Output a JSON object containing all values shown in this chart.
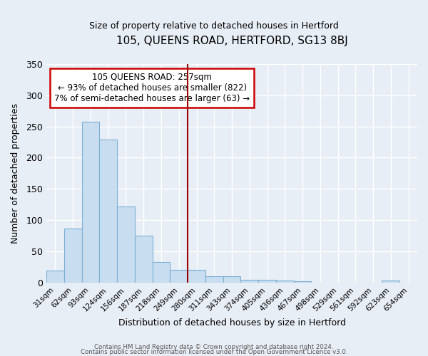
{
  "title": "105, QUEENS ROAD, HERTFORD, SG13 8BJ",
  "subtitle": "Size of property relative to detached houses in Hertford",
  "xlabel": "Distribution of detached houses by size in Hertford",
  "ylabel": "Number of detached properties",
  "bar_labels": [
    "31sqm",
    "62sqm",
    "93sqm",
    "124sqm",
    "156sqm",
    "187sqm",
    "218sqm",
    "249sqm",
    "280sqm",
    "311sqm",
    "343sqm",
    "374sqm",
    "405sqm",
    "436sqm",
    "467sqm",
    "498sqm",
    "529sqm",
    "561sqm",
    "592sqm",
    "623sqm",
    "654sqm"
  ],
  "bar_values": [
    19,
    87,
    257,
    229,
    122,
    75,
    33,
    20,
    21,
    10,
    10,
    5,
    4,
    3,
    2,
    0,
    0,
    0,
    0,
    3,
    0
  ],
  "bar_color": "#c9ddf0",
  "bar_edge_color": "#7bafd4",
  "bg_color": "#e8eef6",
  "plot_bg_color": "#e8eef6",
  "grid_color": "#ffffff",
  "vline_x_index": 7.5,
  "vline_color": "#990000",
  "annotation_title": "105 QUEENS ROAD: 257sqm",
  "annotation_line1": "← 93% of detached houses are smaller (822)",
  "annotation_line2": "7% of semi-detached houses are larger (63) →",
  "annotation_box_color": "#cc0000",
  "ylim": [
    0,
    350
  ],
  "yticks": [
    0,
    50,
    100,
    150,
    200,
    250,
    300,
    350
  ],
  "footer1": "Contains HM Land Registry data © Crown copyright and database right 2024.",
  "footer2": "Contains public sector information licensed under the Open Government Licence v3.0."
}
